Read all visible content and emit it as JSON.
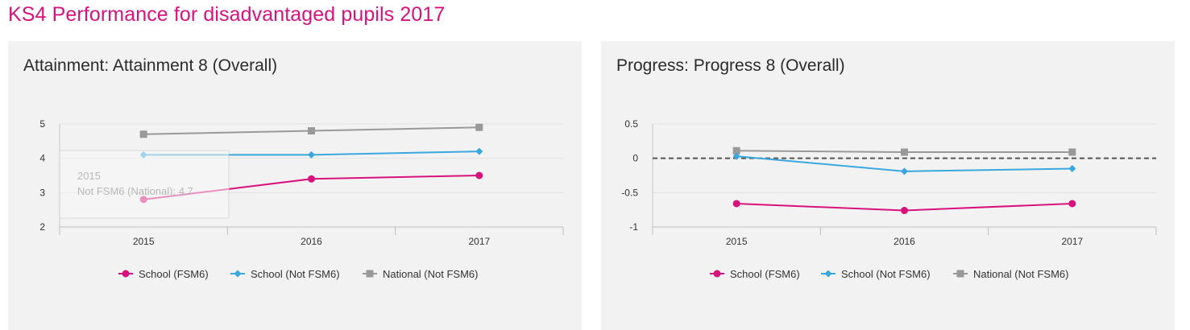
{
  "page": {
    "title": "KS4 Performance for disadvantaged pupils 2017"
  },
  "colors": {
    "school_fsm6": "#d8127d",
    "school_not_fsm6": "#3aa7df",
    "national_not_fsm6": "#999999",
    "background_panel": "#f2f2f2",
    "title_accent": "#d8127d"
  },
  "charts": [
    {
      "panel_title": "Attainment: Attainment 8 (Overall)",
      "tooltip": {
        "line1": "2015",
        "line2": "Not FSM6 (National): 4.7"
      }
    },
    {
      "panel_title": "Progress: Progress 8 (Overall)"
    }
  ],
  "chart_data": [
    {
      "type": "line",
      "title": "Attainment: Attainment 8 (Overall)",
      "xlabel": "",
      "ylabel": "",
      "categories": [
        "2015",
        "2016",
        "2017"
      ],
      "ylim": [
        2,
        5
      ],
      "yticks": [
        2,
        3,
        4,
        5
      ],
      "grid": true,
      "legend": "bottom-center",
      "series": [
        {
          "name": "School (FSM6)",
          "values": [
            2.8,
            3.4,
            3.5
          ],
          "color": "#d8127d",
          "marker": "circle"
        },
        {
          "name": "School (Not FSM6)",
          "values": [
            4.1,
            4.1,
            4.2
          ],
          "color": "#3aa7df",
          "marker": "diamond"
        },
        {
          "name": "National (Not FSM6)",
          "values": [
            4.7,
            4.8,
            4.9
          ],
          "color": "#999999",
          "marker": "square"
        }
      ]
    },
    {
      "type": "line",
      "title": "Progress: Progress 8 (Overall)",
      "xlabel": "",
      "ylabel": "",
      "categories": [
        "2015",
        "2016",
        "2017"
      ],
      "ylim": [
        -1,
        0.5
      ],
      "yticks": [
        -1,
        -0.5,
        0,
        0.5
      ],
      "ytick_labels": [
        "-1",
        "-0.5",
        "0",
        "0.5"
      ],
      "grid": true,
      "reference_line": 0,
      "legend": "bottom-center",
      "series": [
        {
          "name": "School (FSM6)",
          "values": [
            -0.66,
            -0.76,
            -0.66
          ],
          "color": "#d8127d",
          "marker": "circle"
        },
        {
          "name": "School (Not FSM6)",
          "values": [
            0.03,
            -0.19,
            -0.15
          ],
          "color": "#3aa7df",
          "marker": "diamond"
        },
        {
          "name": "National (Not FSM6)",
          "values": [
            0.11,
            0.09,
            0.09
          ],
          "color": "#999999",
          "marker": "square"
        }
      ]
    }
  ]
}
